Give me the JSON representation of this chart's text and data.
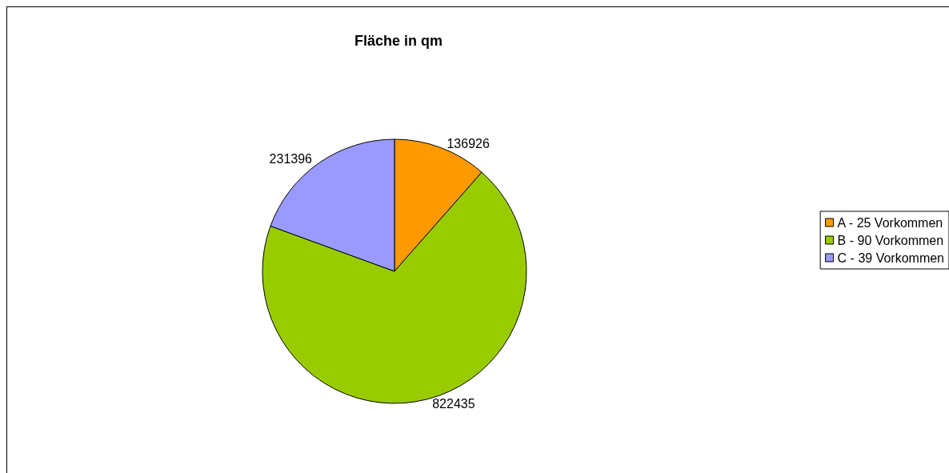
{
  "chart_data": {
    "type": "pie",
    "title": "Fläche in qm",
    "categories": [
      "A - 25 Vorkommen",
      "B - 90 Vorkommen",
      "C - 39 Vorkommen"
    ],
    "values": [
      136926,
      822435,
      231396
    ],
    "colors": [
      "#ff9900",
      "#99cc00",
      "#9999ff"
    ],
    "data_labels": true,
    "legend": "right"
  }
}
